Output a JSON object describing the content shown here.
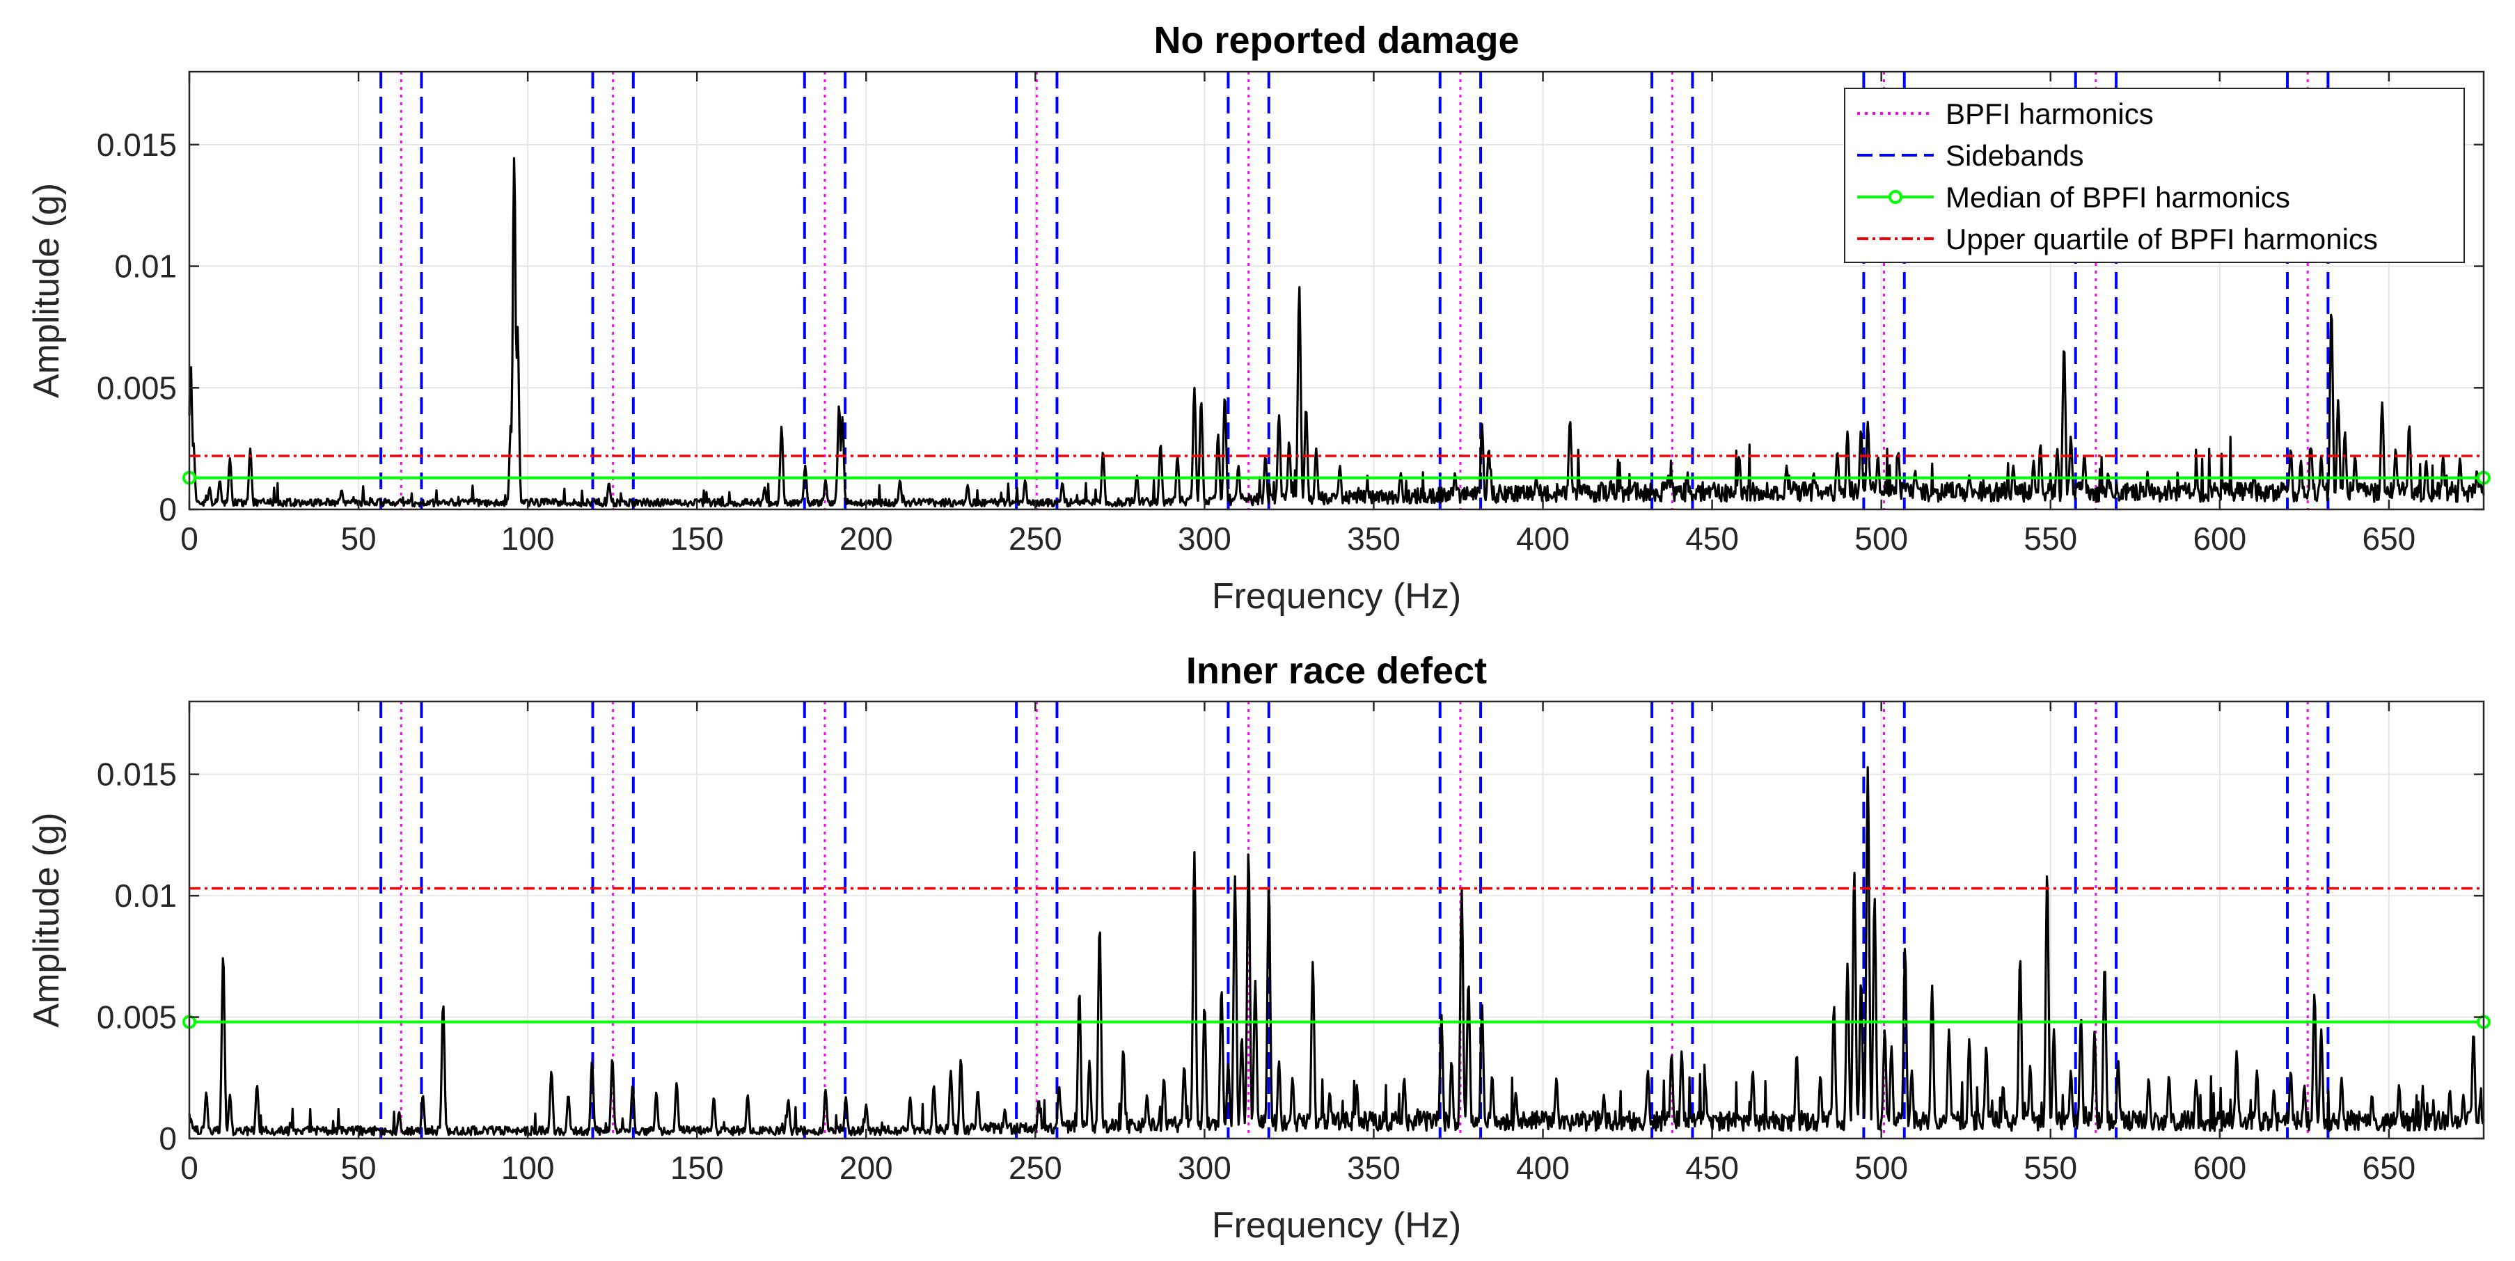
{
  "chart_data": [
    {
      "type": "line",
      "title": "No reported damage",
      "xlabel": "Frequency (Hz)",
      "ylabel": "Amplitude (g)",
      "xlim": [
        0,
        678
      ],
      "ylim": [
        0,
        0.018
      ],
      "xticks": [
        0,
        50,
        100,
        150,
        200,
        250,
        300,
        350,
        400,
        450,
        500,
        550,
        600,
        650
      ],
      "yticks": [
        0,
        0.005,
        0.01,
        0.015
      ],
      "xtick_labels": [
        "0",
        "50",
        "100",
        "150",
        "200",
        "250",
        "300",
        "350",
        "400",
        "450",
        "500",
        "550",
        "600",
        "650"
      ],
      "ytick_labels": [
        "0",
        "0.005",
        "0.01",
        "0.015"
      ],
      "grid": true,
      "bpfi_harmonics": [
        62.6,
        125.2,
        187.8,
        250.4,
        313.0,
        375.6,
        438.2,
        500.8,
        563.4,
        626.0
      ],
      "sidebands": [
        56.6,
        68.6,
        119.2,
        131.2,
        181.8,
        193.8,
        244.4,
        256.4,
        307.0,
        319.0,
        369.6,
        381.6,
        432.2,
        444.2,
        494.8,
        506.8,
        557.4,
        569.4,
        620.0,
        632.0
      ],
      "median": 0.0013,
      "upper_quartile": 0.0022,
      "baseline": {
        "level": 0.00035,
        "rise_start": 270,
        "rise_level": 0.0009
      },
      "peaks": [
        [
          0.4,
          0.0061
        ],
        [
          1.2,
          0.0028
        ],
        [
          6,
          0.0009
        ],
        [
          9,
          0.0012
        ],
        [
          12,
          0.0021
        ],
        [
          18,
          0.0025
        ],
        [
          45,
          0.0008
        ],
        [
          96,
          0.0145
        ],
        [
          97,
          0.0075
        ],
        [
          95,
          0.0035
        ],
        [
          124,
          0.0011
        ],
        [
          170,
          0.0009
        ],
        [
          175,
          0.0034
        ],
        [
          182,
          0.0018
        ],
        [
          188,
          0.0012
        ],
        [
          192,
          0.0043
        ],
        [
          193,
          0.0038
        ],
        [
          210,
          0.0012
        ],
        [
          230,
          0.001
        ],
        [
          247,
          0.0012
        ],
        [
          258,
          0.0011
        ],
        [
          270,
          0.0024
        ],
        [
          280,
          0.0014
        ],
        [
          287,
          0.0027
        ],
        [
          292,
          0.0022
        ],
        [
          297,
          0.005
        ],
        [
          299,
          0.0045
        ],
        [
          304,
          0.0031
        ],
        [
          306,
          0.0047
        ],
        [
          310,
          0.0018
        ],
        [
          318,
          0.0022
        ],
        [
          322,
          0.0039
        ],
        [
          325,
          0.0028
        ],
        [
          328,
          0.0092
        ],
        [
          330,
          0.0042
        ],
        [
          333,
          0.0025
        ],
        [
          340,
          0.0018
        ],
        [
          358,
          0.0015
        ],
        [
          374,
          0.0015
        ],
        [
          382,
          0.0035
        ],
        [
          384,
          0.0025
        ],
        [
          398,
          0.0013
        ],
        [
          408,
          0.0037
        ],
        [
          420,
          0.0012
        ],
        [
          437,
          0.0014
        ],
        [
          458,
          0.0022
        ],
        [
          472,
          0.0018
        ],
        [
          480,
          0.0015
        ],
        [
          487,
          0.0024
        ],
        [
          490,
          0.0032
        ],
        [
          494,
          0.0033
        ],
        [
          496,
          0.0036
        ],
        [
          499,
          0.0022
        ],
        [
          505,
          0.0024
        ],
        [
          510,
          0.0016
        ],
        [
          526,
          0.0014
        ],
        [
          539,
          0.0018
        ],
        [
          545,
          0.002
        ],
        [
          547,
          0.0027
        ],
        [
          552,
          0.0025
        ],
        [
          554,
          0.0068
        ],
        [
          556,
          0.003
        ],
        [
          560,
          0.0023
        ],
        [
          567,
          0.0015
        ],
        [
          585,
          0.0012
        ],
        [
          610,
          0.0013
        ],
        [
          621,
          0.0025
        ],
        [
          624,
          0.002
        ],
        [
          627,
          0.0026
        ],
        [
          630,
          0.0022
        ],
        [
          633,
          0.0083
        ],
        [
          635,
          0.0045
        ],
        [
          637,
          0.0032
        ],
        [
          640,
          0.0022
        ],
        [
          648,
          0.0044
        ],
        [
          652,
          0.0025
        ],
        [
          656,
          0.0035
        ],
        [
          661,
          0.002
        ],
        [
          666,
          0.0022
        ],
        [
          671,
          0.0021
        ],
        [
          676,
          0.0016
        ]
      ]
    },
    {
      "type": "line",
      "title": "Inner race defect",
      "xlabel": "Frequency (Hz)",
      "ylabel": "Amplitude (g)",
      "xlim": [
        0,
        678
      ],
      "ylim": [
        0,
        0.018
      ],
      "xticks": [
        0,
        50,
        100,
        150,
        200,
        250,
        300,
        350,
        400,
        450,
        500,
        550,
        600,
        650
      ],
      "yticks": [
        0,
        0.005,
        0.01,
        0.015
      ],
      "xtick_labels": [
        "0",
        "50",
        "100",
        "150",
        "200",
        "250",
        "300",
        "350",
        "400",
        "450",
        "500",
        "550",
        "600",
        "650"
      ],
      "ytick_labels": [
        "0",
        "0.005",
        "0.01",
        "0.015"
      ],
      "grid": true,
      "bpfi_harmonics": [
        62.6,
        125.2,
        187.8,
        250.4,
        313.0,
        375.6,
        438.2,
        500.8,
        563.4,
        626.0
      ],
      "sidebands": [
        56.6,
        68.6,
        119.2,
        131.2,
        181.8,
        193.8,
        244.4,
        256.4,
        307.0,
        319.0,
        369.6,
        381.6,
        432.2,
        444.2,
        494.8,
        506.8,
        557.4,
        569.4,
        620.0,
        632.0
      ],
      "median": 0.0048,
      "upper_quartile": 0.0103,
      "baseline": {
        "level": 0.0004,
        "rise_start": 200,
        "rise_level": 0.0009
      },
      "peaks": [
        [
          0.5,
          0.0008
        ],
        [
          5,
          0.0019
        ],
        [
          10,
          0.0076
        ],
        [
          12,
          0.0018
        ],
        [
          20,
          0.0022
        ],
        [
          62,
          0.0011
        ],
        [
          69,
          0.0018
        ],
        [
          75,
          0.0056
        ],
        [
          107,
          0.0028
        ],
        [
          112,
          0.0018
        ],
        [
          119,
          0.0032
        ],
        [
          125,
          0.0033
        ],
        [
          131,
          0.0022
        ],
        [
          138,
          0.0019
        ],
        [
          144,
          0.0023
        ],
        [
          155,
          0.0017
        ],
        [
          165,
          0.0018
        ],
        [
          177,
          0.0016
        ],
        [
          188,
          0.002
        ],
        [
          194,
          0.0017
        ],
        [
          200,
          0.0014
        ],
        [
          213,
          0.0017
        ],
        [
          220,
          0.0022
        ],
        [
          225,
          0.0028
        ],
        [
          228,
          0.0033
        ],
        [
          233,
          0.002
        ],
        [
          241,
          0.0012
        ],
        [
          251,
          0.0016
        ],
        [
          257,
          0.0022
        ],
        [
          263,
          0.0061
        ],
        [
          266,
          0.0032
        ],
        [
          269,
          0.0088
        ],
        [
          276,
          0.0037
        ],
        [
          283,
          0.0018
        ],
        [
          288,
          0.0025
        ],
        [
          294,
          0.003
        ],
        [
          297,
          0.0118
        ],
        [
          300,
          0.0055
        ],
        [
          305,
          0.0062
        ],
        [
          307,
          0.0031
        ],
        [
          309,
          0.0108
        ],
        [
          311,
          0.0042
        ],
        [
          313,
          0.0119
        ],
        [
          315,
          0.0065
        ],
        [
          319,
          0.0105
        ],
        [
          322,
          0.0032
        ],
        [
          326,
          0.0025
        ],
        [
          332,
          0.0073
        ],
        [
          337,
          0.0019
        ],
        [
          345,
          0.0022
        ],
        [
          359,
          0.0025
        ],
        [
          363,
          0.0012
        ],
        [
          370,
          0.0051
        ],
        [
          373,
          0.0032
        ],
        [
          376,
          0.0103
        ],
        [
          378,
          0.0065
        ],
        [
          382,
          0.0055
        ],
        [
          385,
          0.0026
        ],
        [
          392,
          0.0019
        ],
        [
          404,
          0.0025
        ],
        [
          418,
          0.0018
        ],
        [
          431,
          0.0028
        ],
        [
          438,
          0.0035
        ],
        [
          441,
          0.0036
        ],
        [
          448,
          0.0022
        ],
        [
          462,
          0.0028
        ],
        [
          475,
          0.0035
        ],
        [
          482,
          0.0026
        ],
        [
          486,
          0.0055
        ],
        [
          490,
          0.0072
        ],
        [
          492,
          0.0111
        ],
        [
          494,
          0.0065
        ],
        [
          496,
          0.0153
        ],
        [
          498,
          0.01
        ],
        [
          501,
          0.0045
        ],
        [
          503,
          0.0038
        ],
        [
          507,
          0.0079
        ],
        [
          509,
          0.0028
        ],
        [
          515,
          0.0063
        ],
        [
          520,
          0.0045
        ],
        [
          526,
          0.0041
        ],
        [
          531,
          0.0038
        ],
        [
          536,
          0.0022
        ],
        [
          541,
          0.0075
        ],
        [
          544,
          0.003
        ],
        [
          549,
          0.011
        ],
        [
          551,
          0.0045
        ],
        [
          556,
          0.0028
        ],
        [
          559,
          0.005
        ],
        [
          563,
          0.0044
        ],
        [
          566,
          0.0072
        ],
        [
          570,
          0.0032
        ],
        [
          579,
          0.0025
        ],
        [
          585,
          0.0026
        ],
        [
          593,
          0.0024
        ],
        [
          605,
          0.0036
        ],
        [
          611,
          0.0028
        ],
        [
          616,
          0.002
        ],
        [
          621,
          0.0028
        ],
        [
          625,
          0.0022
        ],
        [
          628,
          0.006
        ],
        [
          630,
          0.0045
        ],
        [
          636,
          0.0025
        ],
        [
          645,
          0.0018
        ],
        [
          653,
          0.0022
        ],
        [
          660,
          0.0018
        ],
        [
          668,
          0.002
        ],
        [
          672,
          0.0018
        ],
        [
          675,
          0.0044
        ],
        [
          677,
          0.0016
        ]
      ]
    }
  ],
  "legend": {
    "placement": "top-right",
    "entries": [
      {
        "label": "BPFI harmonics",
        "color": "#ff00ff",
        "style": "dotted"
      },
      {
        "label": "Sidebands",
        "color": "#0000ff",
        "style": "dashed"
      },
      {
        "label": "Median of BPFI harmonics",
        "color": "#00ff00",
        "style": "solid-circle"
      },
      {
        "label": "Upper quartile of BPFI harmonics",
        "color": "#ff0000",
        "style": "dash-dot"
      }
    ]
  },
  "colors": {
    "spectrum": "#000000",
    "bpfi": "#ff00ff",
    "sideband": "#0000ff",
    "median": "#00ff00",
    "quartile": "#ff0000",
    "grid": "#e6e6e6"
  }
}
